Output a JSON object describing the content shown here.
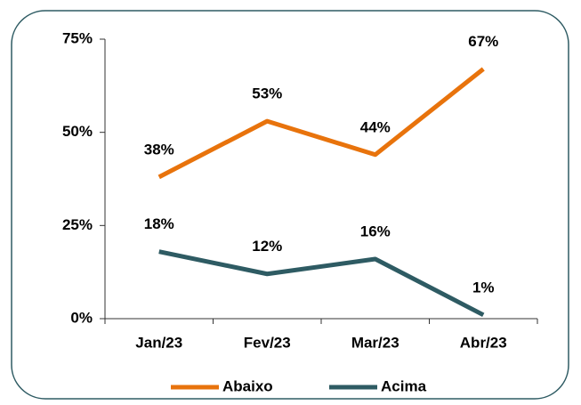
{
  "chart_data": {
    "type": "line",
    "categories": [
      "Jan/23",
      "Fev/23",
      "Mar/23",
      "Abr/23"
    ],
    "series": [
      {
        "name": "Abaixo",
        "color": "#e8730c",
        "values": [
          38,
          53,
          44,
          67
        ],
        "value_labels": [
          "38%",
          "53%",
          "44%",
          "67%"
        ]
      },
      {
        "name": "Acima",
        "color": "#2e5b63",
        "values": [
          18,
          12,
          16,
          1
        ],
        "value_labels": [
          "18%",
          "12%",
          "16%",
          "1%"
        ]
      }
    ],
    "ylim": [
      0,
      75
    ],
    "yticks": [
      {
        "value": 0,
        "label": "0%"
      },
      {
        "value": 25,
        "label": "25%"
      },
      {
        "value": 50,
        "label": "50%"
      },
      {
        "value": 75,
        "label": "75%"
      }
    ],
    "legend": "bottom"
  }
}
